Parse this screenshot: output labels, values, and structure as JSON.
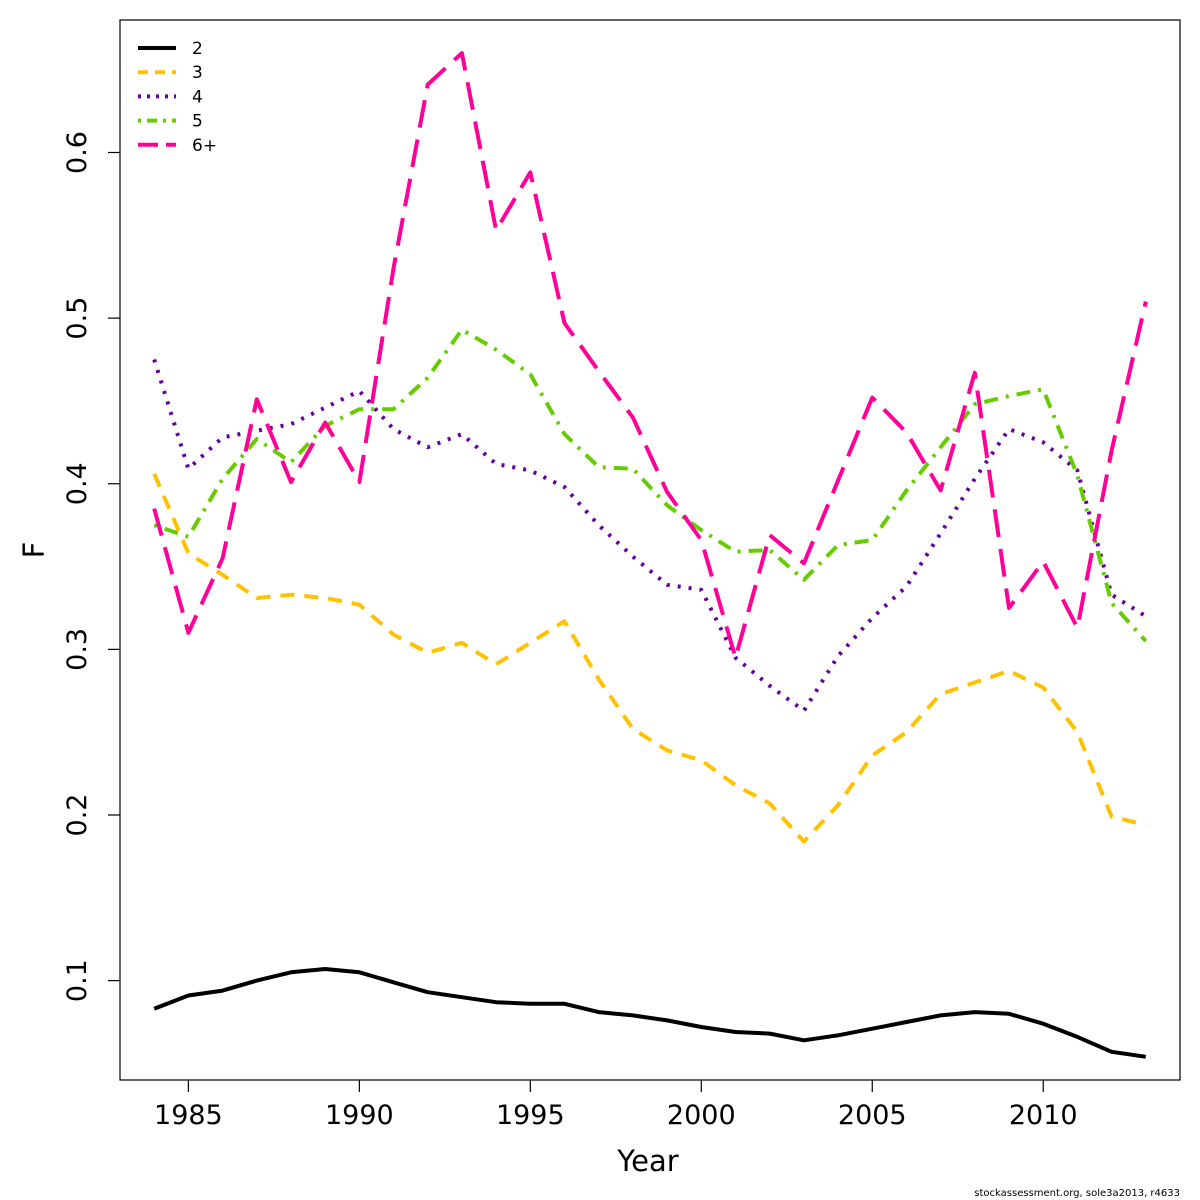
{
  "chart_data": {
    "type": "line",
    "title": "",
    "xlabel": "Year",
    "ylabel": "F",
    "xlim": [
      1983,
      2014
    ],
    "ylim": [
      0.04,
      0.68
    ],
    "xticks": [
      1985,
      1990,
      1995,
      2000,
      2005,
      2010
    ],
    "yticks": [
      0.1,
      0.2,
      0.3,
      0.4,
      0.5,
      0.6
    ],
    "xtick_labels": [
      "1985",
      "1990",
      "1995",
      "2000",
      "2005",
      "2010"
    ],
    "ytick_labels": [
      "0.1",
      "0.2",
      "0.3",
      "0.4",
      "0.5",
      "0.6"
    ],
    "legend_position": "top-left",
    "grid": false,
    "x": [
      1984,
      1985,
      1986,
      1987,
      1988,
      1989,
      1990,
      1991,
      1992,
      1993,
      1994,
      1995,
      1996,
      1997,
      1998,
      1999,
      2000,
      2001,
      2002,
      2003,
      2004,
      2005,
      2006,
      2007,
      2008,
      2009,
      2010,
      2011,
      2012,
      2013
    ],
    "series": [
      {
        "name": "2",
        "color": "#000000",
        "dash": "solid",
        "values": [
          0.083,
          0.091,
          0.094,
          0.1,
          0.105,
          0.107,
          0.105,
          0.099,
          0.093,
          0.09,
          0.087,
          0.086,
          0.086,
          0.081,
          0.079,
          0.076,
          0.072,
          0.069,
          0.068,
          0.064,
          0.067,
          0.071,
          0.075,
          0.079,
          0.081,
          0.08,
          0.074,
          0.066,
          0.057,
          0.054
        ]
      },
      {
        "name": "3",
        "color": "#FFC200",
        "dash": "dashed",
        "values": [
          0.406,
          0.358,
          0.345,
          0.331,
          0.333,
          0.331,
          0.327,
          0.309,
          0.298,
          0.304,
          0.291,
          0.304,
          0.317,
          0.282,
          0.252,
          0.239,
          0.233,
          0.218,
          0.207,
          0.184,
          0.206,
          0.236,
          0.25,
          0.273,
          0.28,
          0.287,
          0.277,
          0.25,
          0.199,
          0.194
        ]
      },
      {
        "name": "4",
        "color": "#66009E",
        "dash": "dotted",
        "values": [
          0.475,
          0.409,
          0.428,
          0.432,
          0.436,
          0.446,
          0.456,
          0.433,
          0.422,
          0.43,
          0.412,
          0.408,
          0.398,
          0.375,
          0.356,
          0.339,
          0.336,
          0.295,
          0.278,
          0.263,
          0.296,
          0.319,
          0.338,
          0.37,
          0.403,
          0.433,
          0.425,
          0.408,
          0.333,
          0.32
        ]
      },
      {
        "name": "5",
        "color": "#66CC00",
        "dash": "dotdash",
        "values": [
          0.375,
          0.368,
          0.403,
          0.427,
          0.413,
          0.435,
          0.445,
          0.445,
          0.464,
          0.493,
          0.481,
          0.466,
          0.43,
          0.41,
          0.409,
          0.387,
          0.372,
          0.359,
          0.36,
          0.342,
          0.363,
          0.366,
          0.396,
          0.422,
          0.448,
          0.453,
          0.457,
          0.405,
          0.328,
          0.305
        ]
      },
      {
        "name": "6+",
        "color": "#FF0099",
        "dash": "longdash",
        "values": [
          0.385,
          0.31,
          0.355,
          0.451,
          0.401,
          0.437,
          0.401,
          0.53,
          0.641,
          0.66,
          0.553,
          0.588,
          0.497,
          0.468,
          0.44,
          0.395,
          0.366,
          0.295,
          0.369,
          0.352,
          0.402,
          0.452,
          0.431,
          0.396,
          0.467,
          0.325,
          0.353,
          0.313,
          0.42,
          0.51
        ]
      }
    ]
  },
  "credit": "stockassessment.org, sole3a2013, r4633"
}
